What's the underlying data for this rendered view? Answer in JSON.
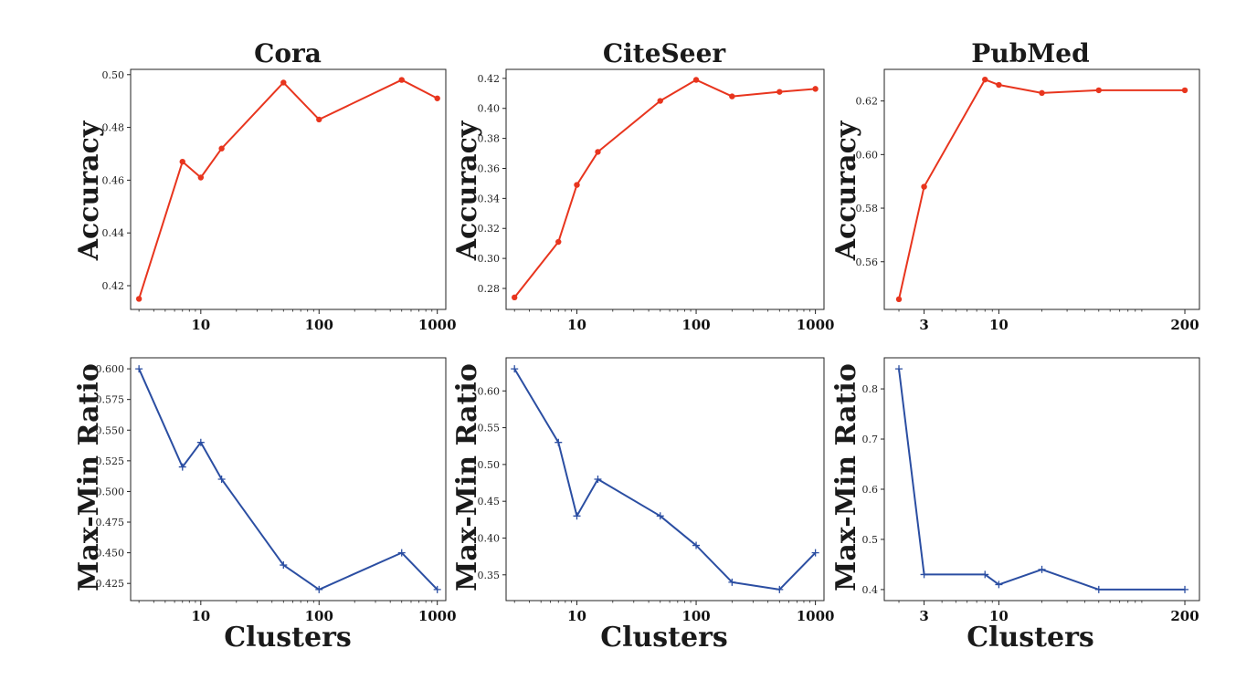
{
  "chart_data": [
    {
      "type": "line",
      "row": "top",
      "column": "Cora",
      "title": "Cora",
      "ylabel": "Accuracy",
      "xlabel": "",
      "xscale": "log",
      "grid": false,
      "color": "#e8351e",
      "marker": "dot",
      "x": [
        3,
        7,
        10,
        15,
        50,
        100,
        500,
        1000
      ],
      "y": [
        0.415,
        0.467,
        0.461,
        0.472,
        0.497,
        0.483,
        0.498,
        0.491
      ],
      "xlim": [
        2.55,
        1180
      ],
      "ylim": [
        0.411,
        0.502
      ],
      "xticks": [
        10,
        100,
        1000
      ],
      "xtick_labels": [
        "10",
        "100",
        "1000"
      ],
      "yticks": [
        0.42,
        0.44,
        0.46,
        0.48,
        0.5
      ],
      "ytick_labels": [
        "0.42",
        "0.44",
        "0.46",
        "0.48",
        "0.50"
      ]
    },
    {
      "type": "line",
      "row": "top",
      "column": "CiteSeer",
      "title": "CiteSeer",
      "ylabel": "Accuracy",
      "xlabel": "",
      "xscale": "log",
      "grid": false,
      "color": "#e8351e",
      "marker": "dot",
      "x": [
        3,
        7,
        10,
        15,
        50,
        100,
        200,
        500,
        1000
      ],
      "y": [
        0.274,
        0.311,
        0.349,
        0.371,
        0.405,
        0.419,
        0.408,
        0.411,
        0.413
      ],
      "xlim": [
        2.55,
        1180
      ],
      "ylim": [
        0.266,
        0.426
      ],
      "xticks": [
        10,
        100,
        1000
      ],
      "xtick_labels": [
        "10",
        "100",
        "1000"
      ],
      "yticks": [
        0.28,
        0.3,
        0.32,
        0.34,
        0.36,
        0.38,
        0.4,
        0.42
      ],
      "ytick_labels": [
        "0.28",
        "0.30",
        "0.32",
        "0.34",
        "0.36",
        "0.38",
        "0.40",
        "0.42"
      ]
    },
    {
      "type": "line",
      "row": "top",
      "column": "PubMed",
      "title": "PubMed",
      "ylabel": "Accuracy",
      "xlabel": "",
      "xscale": "log",
      "grid": false,
      "color": "#e8351e",
      "marker": "dot",
      "x": [
        2,
        3,
        8,
        10,
        20,
        50,
        200
      ],
      "y": [
        0.546,
        0.588,
        0.628,
        0.626,
        0.623,
        0.624,
        0.624
      ],
      "xlim": [
        1.58,
        253
      ],
      "ylim": [
        0.5422,
        0.6318
      ],
      "xticks": [
        3,
        10,
        200
      ],
      "xtick_labels": [
        "3",
        "10",
        "200"
      ],
      "yticks": [
        0.56,
        0.58,
        0.6,
        0.62
      ],
      "ytick_labels": [
        "0.56",
        "0.58",
        "0.60",
        "0.62"
      ]
    },
    {
      "type": "line",
      "row": "bottom",
      "column": "Cora",
      "title": "",
      "ylabel": "Max-Min Ratio",
      "xlabel": "Clusters",
      "xscale": "log",
      "grid": false,
      "color": "#2b4ea2",
      "marker": "plus",
      "x": [
        3,
        7,
        10,
        15,
        50,
        100,
        500,
        1000
      ],
      "y": [
        0.6,
        0.52,
        0.54,
        0.51,
        0.44,
        0.42,
        0.45,
        0.42
      ],
      "xlim": [
        2.55,
        1180
      ],
      "ylim": [
        0.411,
        0.609
      ],
      "xticks": [
        10,
        100,
        1000
      ],
      "xtick_labels": [
        "10",
        "100",
        "1000"
      ],
      "yticks": [
        0.425,
        0.45,
        0.475,
        0.5,
        0.525,
        0.55,
        0.575,
        0.6
      ],
      "ytick_labels": [
        "0.425",
        "0.450",
        "0.475",
        "0.500",
        "0.525",
        "0.550",
        "0.575",
        "0.600"
      ]
    },
    {
      "type": "line",
      "row": "bottom",
      "column": "CiteSeer",
      "title": "",
      "ylabel": "Max-Min Ratio",
      "xlabel": "Clusters",
      "xscale": "log",
      "grid": false,
      "color": "#2b4ea2",
      "marker": "plus",
      "x": [
        3,
        7,
        10,
        15,
        50,
        100,
        200,
        500,
        1000
      ],
      "y": [
        0.63,
        0.53,
        0.43,
        0.48,
        0.43,
        0.39,
        0.34,
        0.33,
        0.38
      ],
      "xlim": [
        2.55,
        1180
      ],
      "ylim": [
        0.315,
        0.645
      ],
      "xticks": [
        10,
        100,
        1000
      ],
      "xtick_labels": [
        "10",
        "100",
        "1000"
      ],
      "yticks": [
        0.35,
        0.4,
        0.45,
        0.5,
        0.55,
        0.6
      ],
      "ytick_labels": [
        "0.35",
        "0.40",
        "0.45",
        "0.50",
        "0.55",
        "0.60"
      ]
    },
    {
      "type": "line",
      "row": "bottom",
      "column": "PubMed",
      "title": "",
      "ylabel": "Max-Min Ratio",
      "xlabel": "Clusters",
      "xscale": "log",
      "grid": false,
      "color": "#2b4ea2",
      "marker": "plus",
      "x": [
        2,
        3,
        8,
        10,
        20,
        50,
        200
      ],
      "y": [
        0.84,
        0.43,
        0.43,
        0.41,
        0.44,
        0.4,
        0.4
      ],
      "xlim": [
        1.58,
        253
      ],
      "ylim": [
        0.378,
        0.862
      ],
      "xticks": [
        3,
        10,
        200
      ],
      "xtick_labels": [
        "3",
        "10",
        "200"
      ],
      "yticks": [
        0.4,
        0.5,
        0.6,
        0.7,
        0.8
      ],
      "ytick_labels": [
        "0.4",
        "0.5",
        "0.6",
        "0.7",
        "0.8"
      ]
    }
  ]
}
